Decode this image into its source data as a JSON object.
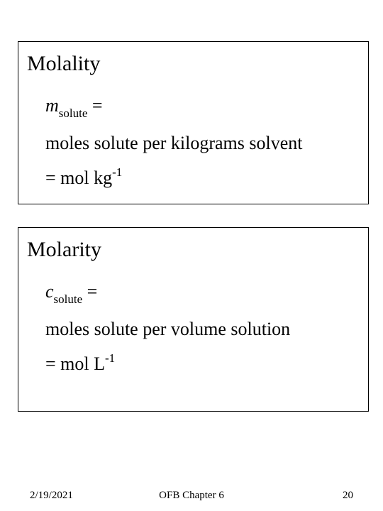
{
  "molality": {
    "heading": "Molality",
    "symbol_var": "m",
    "symbol_sub": "solute",
    "eq_after": " =",
    "definition": "moles solute per kilograms solvent",
    "unit_prefix": "= mol kg",
    "unit_exp": "-1"
  },
  "molarity": {
    "heading": "Molarity",
    "symbol_var": "c",
    "symbol_sub": "solute",
    "eq_after": " =",
    "definition": "moles solute per volume solution",
    "unit_prefix": "= mol L",
    "unit_exp": "-1"
  },
  "footer": {
    "date": "2/19/2021",
    "center": "OFB Chapter 6",
    "page": "20"
  }
}
